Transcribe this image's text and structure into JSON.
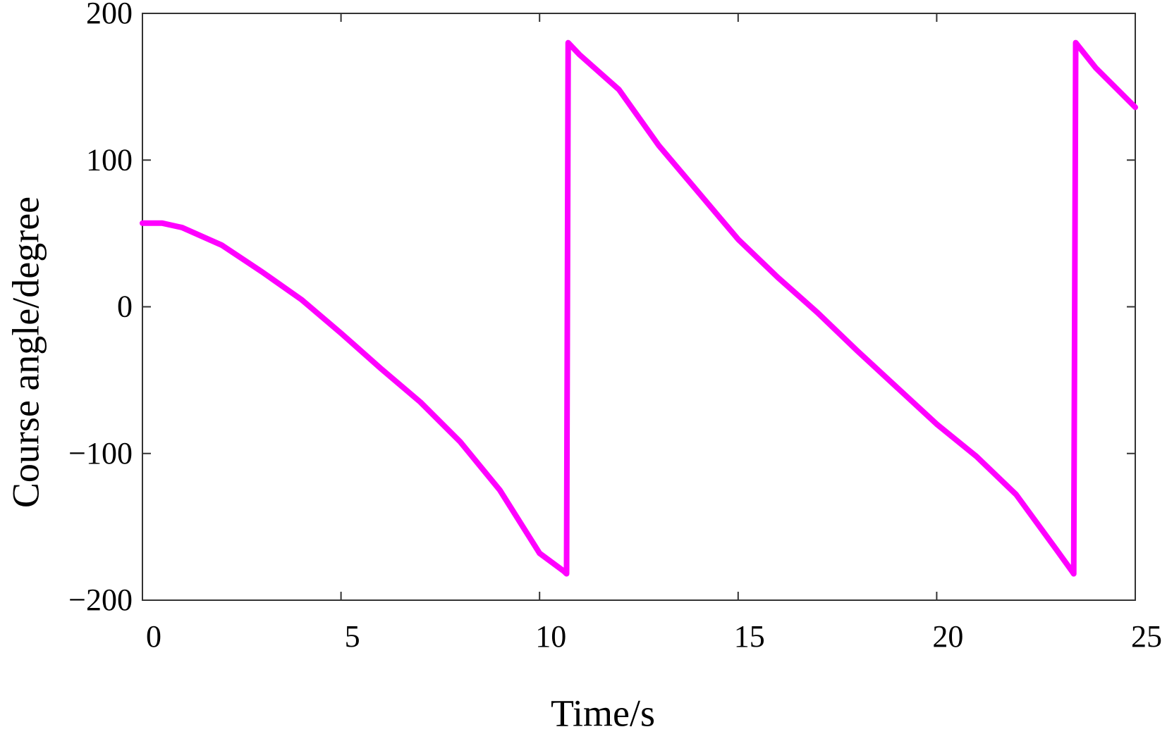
{
  "chart_data": {
    "type": "line",
    "x_label": "Time/s",
    "y_label": "Course angle/degree",
    "xlim": [
      0,
      25
    ],
    "ylim": [
      -200,
      200
    ],
    "xticks": [
      0,
      5,
      10,
      15,
      20,
      25
    ],
    "yticks": [
      {
        "value": -200,
        "label": "−200"
      },
      {
        "value": -100,
        "label": "−100"
      },
      0,
      100,
      200
    ],
    "series": [
      {
        "color": "#ff00ff",
        "x": [
          0,
          0.5,
          1,
          2,
          3,
          4,
          5,
          6,
          7,
          8,
          9,
          10,
          10.6,
          10.68,
          10.72,
          11,
          12,
          13,
          14,
          15,
          16,
          17,
          18,
          19,
          20,
          21,
          22,
          23,
          23.4,
          23.45,
          23.5,
          24,
          25
        ],
        "values": [
          57,
          57,
          54,
          42,
          24,
          5,
          -18,
          -42,
          -65,
          -92,
          -125,
          -168,
          -180,
          -182,
          180,
          172,
          148,
          110,
          78,
          46,
          20,
          -4,
          -30,
          -55,
          -80,
          -102,
          -128,
          -165,
          -180,
          -182,
          180,
          163,
          136
        ]
      }
    ]
  }
}
